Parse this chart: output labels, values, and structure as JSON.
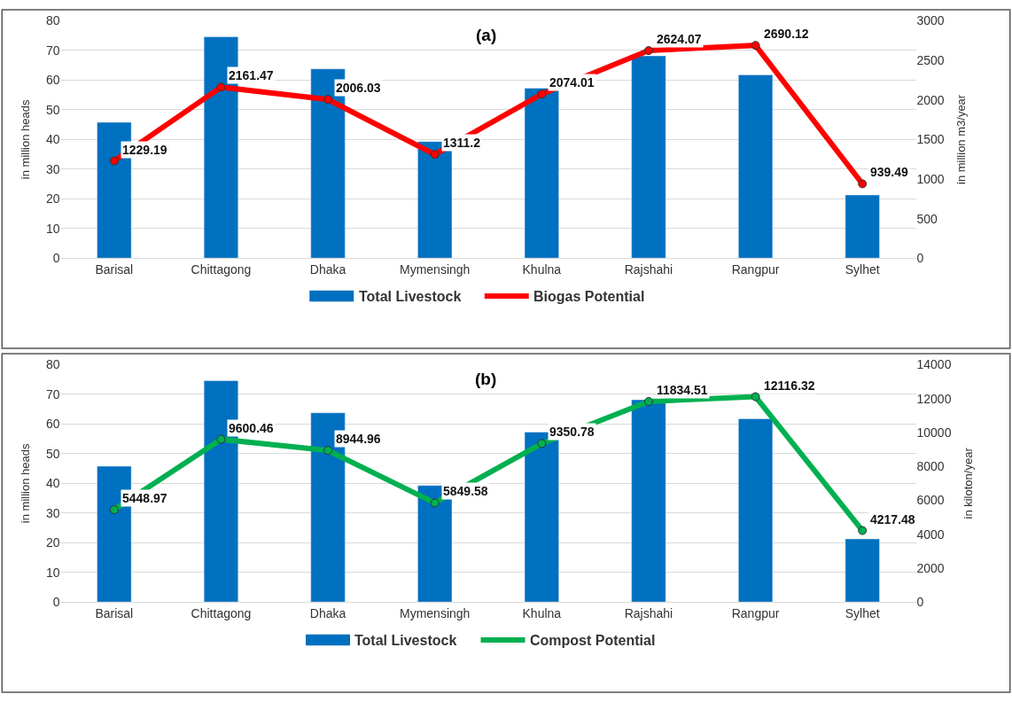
{
  "chart_data": [
    {
      "type": "bar",
      "title": "(a)",
      "ylabel": "in million heads",
      "y2label": "in million m3/year",
      "categories": [
        "Barisal",
        "Chittagong",
        "Dhaka",
        "Mymensingh",
        "Khulna",
        "Rajshahi",
        "Rangpur",
        "Sylhet"
      ],
      "series": [
        {
          "name": "Total Livestock",
          "color": "#0070c0",
          "values": [
            45.8,
            74.6,
            63.8,
            39.3,
            57.3,
            68.2,
            61.8,
            21.3
          ]
        },
        {
          "name": "Biogas Potential",
          "type": "line",
          "axis": "y2",
          "color": "#ff0000",
          "marker": "circle",
          "values": [
            1229.19,
            2161.47,
            2006.03,
            1311.2,
            2074.01,
            2624.07,
            2690.12,
            939.49
          ],
          "value_labels": [
            "1229.19",
            "2161.47",
            "2006.03",
            "1311.2",
            "2074.01",
            "2624.07",
            "2690.12",
            "939.49"
          ]
        }
      ],
      "ylim": [
        0,
        80
      ],
      "yticks": [
        0,
        10,
        20,
        30,
        40,
        50,
        60,
        70,
        80
      ],
      "y2lim": [
        0,
        3000
      ],
      "y2ticks": [
        0,
        500,
        1000,
        1500,
        2000,
        2500,
        3000
      ],
      "grid": "y",
      "legend": "bottom"
    },
    {
      "type": "bar",
      "title": "(b)",
      "ylabel": "in million heads",
      "y2label": "in kiloton/year",
      "categories": [
        "Barisal",
        "Chittagong",
        "Dhaka",
        "Mymensingh",
        "Khulna",
        "Rajshahi",
        "Rangpur",
        "Sylhet"
      ],
      "series": [
        {
          "name": "Total Livestock",
          "color": "#0070c0",
          "values": [
            45.8,
            74.6,
            63.8,
            39.3,
            57.3,
            68.2,
            61.8,
            21.3
          ]
        },
        {
          "name": "Compost Potential",
          "type": "line",
          "axis": "y2",
          "color": "#00b050",
          "marker": "circle",
          "values": [
            5448.97,
            9600.46,
            8944.96,
            5849.58,
            9350.78,
            11834.51,
            12116.32,
            4217.48
          ],
          "value_labels": [
            "5448.97",
            "9600.46",
            "8944.96",
            "5849.58",
            "9350.78",
            "11834.51",
            "12116.32",
            "4217.48"
          ]
        }
      ],
      "ylim": [
        0,
        80
      ],
      "yticks": [
        0,
        10,
        20,
        30,
        40,
        50,
        60,
        70,
        80
      ],
      "y2lim": [
        0,
        14000
      ],
      "y2ticks": [
        0,
        2000,
        4000,
        6000,
        8000,
        10000,
        12000,
        14000
      ],
      "grid": "y",
      "legend": "bottom"
    }
  ]
}
